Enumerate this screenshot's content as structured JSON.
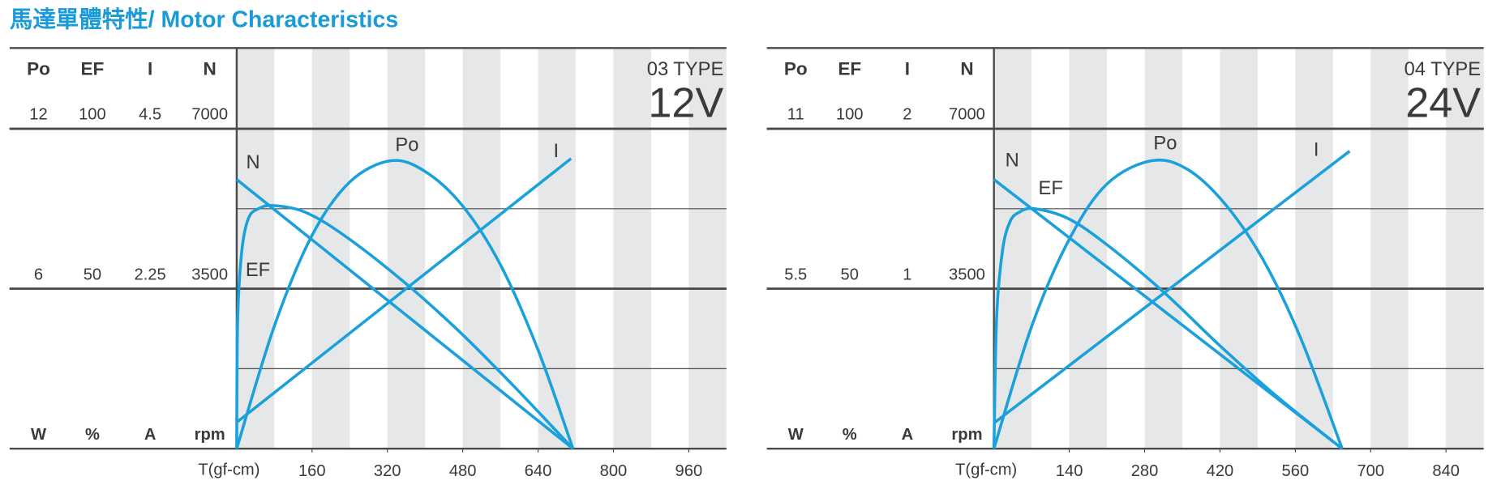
{
  "title": "馬達單體特性/ Motor Characteristics",
  "chart_data": [
    {
      "type": "line",
      "model": "03 TYPE",
      "voltage": "12V",
      "xlabel": "T(gf-cm)",
      "xlim": [
        0,
        1040
      ],
      "xticks": [
        160,
        320,
        480,
        640,
        800,
        960
      ],
      "axes": [
        {
          "label": "Po",
          "unit": "W",
          "ylim": [
            0,
            12
          ],
          "yticks": [
            6,
            12
          ]
        },
        {
          "label": "EF",
          "unit": "%",
          "ylim": [
            0,
            100
          ],
          "yticks": [
            50,
            100
          ]
        },
        {
          "label": "I",
          "unit": "A",
          "ylim": [
            0,
            4.5
          ],
          "yticks": [
            2.25,
            4.5
          ]
        },
        {
          "label": "N",
          "unit": "rpm",
          "ylim": [
            0,
            7000
          ],
          "yticks": [
            3500,
            7000
          ]
        }
      ],
      "series": [
        {
          "name": "Po",
          "color": "#1aa1dc",
          "axis": 0,
          "x": [
            0,
            80,
            160,
            240,
            327,
            400,
            480,
            560,
            640,
            714
          ],
          "values": [
            0,
            4.6,
            8.0,
            10.0,
            10.8,
            10.4,
            9.1,
            6.9,
            3.7,
            0
          ]
        },
        {
          "name": "EF",
          "color": "#1aa1dc",
          "axis": 1,
          "x": [
            0,
            2,
            11,
            25,
            46,
            78,
            144,
            225,
            348,
            470,
            592,
            714
          ],
          "values": [
            0,
            40,
            62,
            72,
            75,
            76,
            74,
            67,
            53,
            37,
            19,
            0
          ]
        },
        {
          "name": "I",
          "color": "#1aa1dc",
          "axis": 2,
          "x": [
            0,
            710
          ],
          "values": [
            0.37,
            4.08
          ]
        },
        {
          "name": "N",
          "color": "#1aa1dc",
          "axis": 3,
          "x": [
            0,
            714
          ],
          "values": [
            5890,
            0
          ]
        }
      ]
    },
    {
      "type": "line",
      "model": "04 TYPE",
      "voltage": "24V",
      "xlabel": "T(gf-cm)",
      "xlim": [
        0,
        910
      ],
      "xticks": [
        140,
        280,
        420,
        560,
        700,
        840
      ],
      "axes": [
        {
          "label": "Po",
          "unit": "W",
          "ylim": [
            0,
            11
          ],
          "yticks": [
            5.5,
            11
          ]
        },
        {
          "label": "EF",
          "unit": "%",
          "ylim": [
            0,
            100
          ],
          "yticks": [
            50,
            100
          ]
        },
        {
          "label": "I",
          "unit": "A",
          "ylim": [
            0,
            2
          ],
          "yticks": [
            1,
            2
          ]
        },
        {
          "label": "N",
          "unit": "rpm",
          "ylim": [
            0,
            7000
          ],
          "yticks": [
            3500,
            7000
          ]
        }
      ],
      "series": [
        {
          "name": "Po",
          "color": "#1aa1dc",
          "axis": 0,
          "x": [
            0,
            70,
            140,
            210,
            293,
            360,
            430,
            500,
            570,
            647
          ],
          "values": [
            0,
            4.2,
            7.2,
            9.1,
            9.9,
            9.6,
            8.4,
            6.5,
            3.8,
            0
          ]
        },
        {
          "name": "EF",
          "color": "#1aa1dc",
          "axis": 1,
          "x": [
            0,
            5,
            16,
            30,
            48,
            75,
            137,
            208,
            315,
            421,
            528,
            647
          ],
          "values": [
            0,
            41,
            62,
            71,
            74,
            75,
            72,
            64,
            49,
            32,
            16,
            0
          ]
        },
        {
          "name": "I",
          "color": "#1aa1dc",
          "axis": 2,
          "x": [
            0,
            661
          ],
          "values": [
            0.16,
            1.86
          ]
        },
        {
          "name": "N",
          "color": "#1aa1dc",
          "axis": 3,
          "x": [
            0,
            647
          ],
          "values": [
            5890,
            0
          ]
        }
      ]
    }
  ]
}
